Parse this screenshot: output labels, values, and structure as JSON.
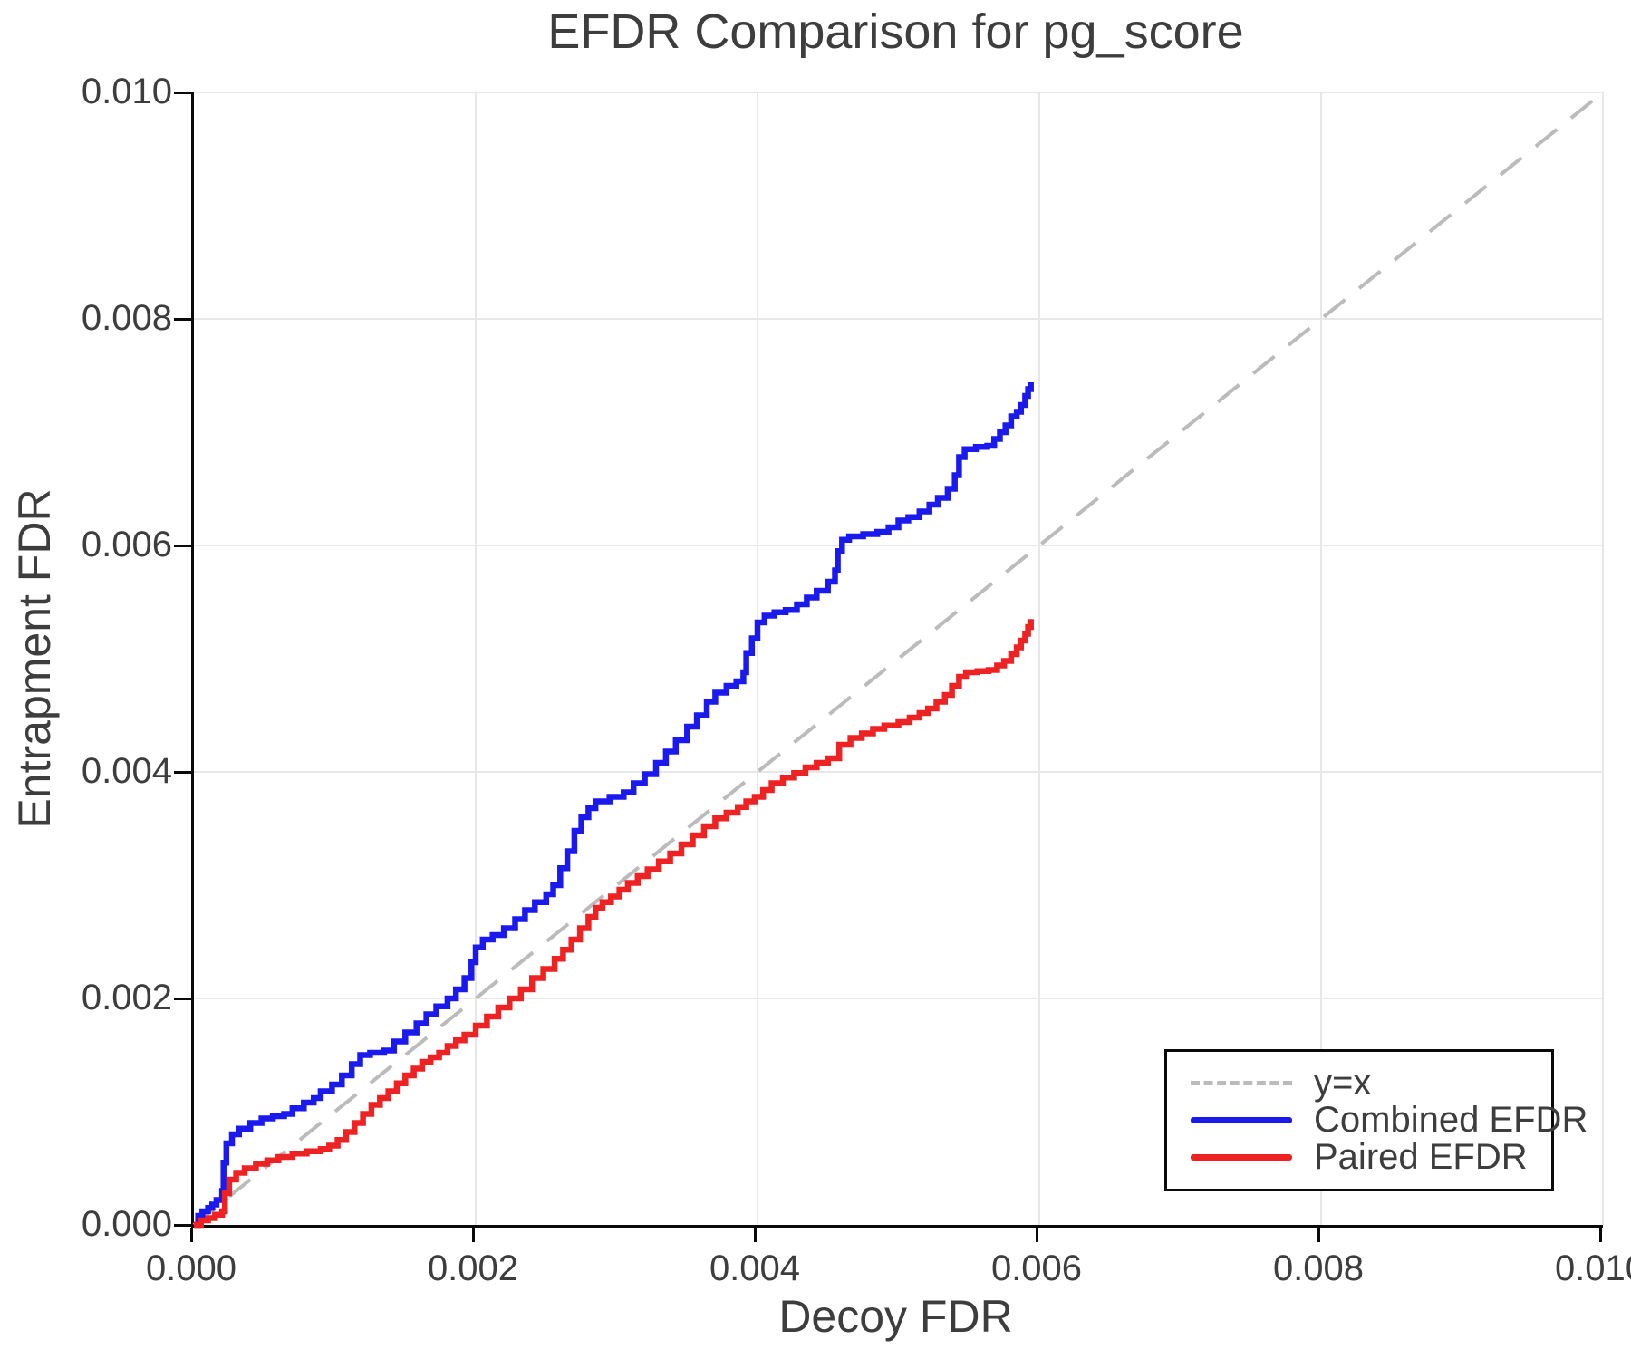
{
  "chart_data": {
    "type": "line",
    "title": "EFDR Comparison for pg_score",
    "xlabel": "Decoy FDR",
    "ylabel": "Entrapment FDR",
    "xlim": [
      0,
      0.01
    ],
    "ylim": [
      0,
      0.01
    ],
    "grid": true,
    "legend_position": "lower right",
    "x_ticks": {
      "values": [
        0,
        0.002,
        0.004,
        0.006,
        0.008,
        0.01
      ],
      "labels": [
        "0.000",
        "0.002",
        "0.004",
        "0.006",
        "0.008",
        "0.010"
      ]
    },
    "y_ticks": {
      "values": [
        0,
        0.002,
        0.004,
        0.006,
        0.008,
        0.01
      ],
      "labels": [
        "0.000",
        "0.002",
        "0.004",
        "0.006",
        "0.008",
        "0.010"
      ]
    },
    "colors": {
      "grid": "#e7e7e7",
      "spine": "#0a0a0a",
      "text": "#3d3d3d",
      "diagonal": "#bbbbbb",
      "combined": "#1a1aee",
      "paired": "#ee2222"
    },
    "series": [
      {
        "name": "y=x",
        "style": "dashed",
        "color": "#bbbbbb",
        "points": [
          [
            0,
            0
          ],
          [
            0.01,
            0.01
          ]
        ]
      },
      {
        "name": "Combined EFDR",
        "style": "step",
        "color": "#1a1aee",
        "points": [
          [
            0,
            0
          ],
          [
            3e-05,
            8e-05
          ],
          [
            6e-05,
            0.00012
          ],
          [
            0.0001,
            0.00015
          ],
          [
            0.00013,
            0.00018
          ],
          [
            0.00016,
            0.00022
          ],
          [
            0.0002,
            0.0003
          ],
          [
            0.00021,
            0.00055
          ],
          [
            0.00023,
            0.00072
          ],
          [
            0.00027,
            0.0008
          ],
          [
            0.00032,
            0.00085
          ],
          [
            0.0004,
            0.0009
          ],
          [
            0.00048,
            0.00094
          ],
          [
            0.00056,
            0.00096
          ],
          [
            0.00064,
            0.00098
          ],
          [
            0.0007,
            0.00103
          ],
          [
            0.00078,
            0.00108
          ],
          [
            0.00085,
            0.00112
          ],
          [
            0.0009,
            0.00118
          ],
          [
            0.00098,
            0.00124
          ],
          [
            0.00105,
            0.00132
          ],
          [
            0.00112,
            0.00142
          ],
          [
            0.00118,
            0.0015
          ],
          [
            0.00125,
            0.00152
          ],
          [
            0.00135,
            0.00154
          ],
          [
            0.00142,
            0.00162
          ],
          [
            0.0015,
            0.0017
          ],
          [
            0.00158,
            0.00178
          ],
          [
            0.00165,
            0.00186
          ],
          [
            0.00172,
            0.00193
          ],
          [
            0.0018,
            0.002
          ],
          [
            0.00186,
            0.00208
          ],
          [
            0.00192,
            0.00218
          ],
          [
            0.00197,
            0.00232
          ],
          [
            0.002,
            0.00245
          ],
          [
            0.00205,
            0.00252
          ],
          [
            0.00212,
            0.00256
          ],
          [
            0.0022,
            0.00262
          ],
          [
            0.00228,
            0.0027
          ],
          [
            0.00235,
            0.00278
          ],
          [
            0.00242,
            0.00285
          ],
          [
            0.0025,
            0.00292
          ],
          [
            0.00255,
            0.003
          ],
          [
            0.0026,
            0.00315
          ],
          [
            0.00265,
            0.0033
          ],
          [
            0.0027,
            0.00348
          ],
          [
            0.00275,
            0.0036
          ],
          [
            0.0028,
            0.00368
          ],
          [
            0.00285,
            0.00374
          ],
          [
            0.00295,
            0.00378
          ],
          [
            0.00305,
            0.00382
          ],
          [
            0.00312,
            0.0039
          ],
          [
            0.0032,
            0.00398
          ],
          [
            0.00328,
            0.00408
          ],
          [
            0.00335,
            0.00418
          ],
          [
            0.00342,
            0.00428
          ],
          [
            0.0035,
            0.0044
          ],
          [
            0.00357,
            0.0045
          ],
          [
            0.00364,
            0.00462
          ],
          [
            0.0037,
            0.0047
          ],
          [
            0.00378,
            0.00476
          ],
          [
            0.00385,
            0.0048
          ],
          [
            0.0039,
            0.00488
          ],
          [
            0.00392,
            0.00505
          ],
          [
            0.00396,
            0.00518
          ],
          [
            0.004,
            0.00532
          ],
          [
            0.00405,
            0.00538
          ],
          [
            0.00412,
            0.00541
          ],
          [
            0.0042,
            0.00543
          ],
          [
            0.00428,
            0.00548
          ],
          [
            0.00435,
            0.00554
          ],
          [
            0.00442,
            0.0056
          ],
          [
            0.0045,
            0.00568
          ],
          [
            0.00455,
            0.00578
          ],
          [
            0.00457,
            0.00595
          ],
          [
            0.0046,
            0.00605
          ],
          [
            0.00465,
            0.00608
          ],
          [
            0.00475,
            0.0061
          ],
          [
            0.00485,
            0.00612
          ],
          [
            0.00493,
            0.00616
          ],
          [
            0.005,
            0.00622
          ],
          [
            0.00507,
            0.00625
          ],
          [
            0.00515,
            0.0063
          ],
          [
            0.00522,
            0.00636
          ],
          [
            0.00528,
            0.00642
          ],
          [
            0.00535,
            0.0065
          ],
          [
            0.0054,
            0.00662
          ],
          [
            0.00543,
            0.00678
          ],
          [
            0.00547,
            0.00685
          ],
          [
            0.00555,
            0.00687
          ],
          [
            0.00563,
            0.00688
          ],
          [
            0.00568,
            0.00694
          ],
          [
            0.00572,
            0.007
          ],
          [
            0.00576,
            0.00706
          ],
          [
            0.0058,
            0.00714
          ],
          [
            0.00584,
            0.00718
          ],
          [
            0.00587,
            0.00724
          ],
          [
            0.0059,
            0.00732
          ],
          [
            0.00592,
            0.00738
          ],
          [
            0.00594,
            0.00744
          ]
        ]
      },
      {
        "name": "Paired EFDR",
        "style": "step",
        "color": "#ee2222",
        "points": [
          [
            0,
            0
          ],
          [
            5e-05,
            4e-05
          ],
          [
            0.0001,
            6e-05
          ],
          [
            0.00015,
            9e-05
          ],
          [
            0.0002,
            0.00012
          ],
          [
            0.00022,
            0.00028
          ],
          [
            0.00025,
            0.0004
          ],
          [
            0.0003,
            0.00046
          ],
          [
            0.00036,
            0.0005
          ],
          [
            0.00044,
            0.00054
          ],
          [
            0.00052,
            0.00057
          ],
          [
            0.0006,
            0.0006
          ],
          [
            0.0007,
            0.00063
          ],
          [
            0.0008,
            0.00065
          ],
          [
            0.0009,
            0.00067
          ],
          [
            0.00096,
            0.0007
          ],
          [
            0.00102,
            0.00075
          ],
          [
            0.00108,
            0.00082
          ],
          [
            0.00114,
            0.0009
          ],
          [
            0.0012,
            0.00098
          ],
          [
            0.00126,
            0.00106
          ],
          [
            0.00132,
            0.00112
          ],
          [
            0.00138,
            0.00118
          ],
          [
            0.00144,
            0.00125
          ],
          [
            0.0015,
            0.00132
          ],
          [
            0.00156,
            0.00138
          ],
          [
            0.00162,
            0.00144
          ],
          [
            0.00168,
            0.00148
          ],
          [
            0.00174,
            0.00152
          ],
          [
            0.0018,
            0.00158
          ],
          [
            0.00186,
            0.00163
          ],
          [
            0.00192,
            0.00168
          ],
          [
            0.002,
            0.00176
          ],
          [
            0.00208,
            0.00184
          ],
          [
            0.00216,
            0.00192
          ],
          [
            0.00224,
            0.002
          ],
          [
            0.00232,
            0.00208
          ],
          [
            0.0024,
            0.00218
          ],
          [
            0.00248,
            0.00226
          ],
          [
            0.00256,
            0.00235
          ],
          [
            0.00262,
            0.00243
          ],
          [
            0.00268,
            0.00252
          ],
          [
            0.00274,
            0.00262
          ],
          [
            0.0028,
            0.00272
          ],
          [
            0.00285,
            0.0028
          ],
          [
            0.0029,
            0.00285
          ],
          [
            0.00296,
            0.0029
          ],
          [
            0.00302,
            0.00296
          ],
          [
            0.00308,
            0.00302
          ],
          [
            0.00315,
            0.00308
          ],
          [
            0.00322,
            0.00314
          ],
          [
            0.0033,
            0.00321
          ],
          [
            0.00338,
            0.00328
          ],
          [
            0.00346,
            0.00336
          ],
          [
            0.00354,
            0.00344
          ],
          [
            0.00362,
            0.00352
          ],
          [
            0.0037,
            0.00359
          ],
          [
            0.00378,
            0.00364
          ],
          [
            0.00386,
            0.00369
          ],
          [
            0.00392,
            0.00374
          ],
          [
            0.00398,
            0.00378
          ],
          [
            0.00404,
            0.00384
          ],
          [
            0.0041,
            0.0039
          ],
          [
            0.00418,
            0.00395
          ],
          [
            0.00426,
            0.00399
          ],
          [
            0.00434,
            0.00404
          ],
          [
            0.00442,
            0.00408
          ],
          [
            0.0045,
            0.00412
          ],
          [
            0.00458,
            0.00424
          ],
          [
            0.00466,
            0.0043
          ],
          [
            0.00474,
            0.00434
          ],
          [
            0.00482,
            0.00438
          ],
          [
            0.0049,
            0.00441
          ],
          [
            0.005,
            0.00444
          ],
          [
            0.00508,
            0.00448
          ],
          [
            0.00515,
            0.00452
          ],
          [
            0.00521,
            0.00456
          ],
          [
            0.00527,
            0.00462
          ],
          [
            0.00533,
            0.00468
          ],
          [
            0.00538,
            0.00476
          ],
          [
            0.00543,
            0.00484
          ],
          [
            0.00548,
            0.00488
          ],
          [
            0.00556,
            0.00489
          ],
          [
            0.00564,
            0.0049
          ],
          [
            0.0057,
            0.00494
          ],
          [
            0.00575,
            0.00498
          ],
          [
            0.0058,
            0.00504
          ],
          [
            0.00584,
            0.0051
          ],
          [
            0.00587,
            0.00516
          ],
          [
            0.0059,
            0.00522
          ],
          [
            0.00592,
            0.00528
          ],
          [
            0.00594,
            0.00535
          ]
        ]
      }
    ],
    "legend": [
      {
        "label": "y=x",
        "style": "dashed",
        "color": "#bbbbbb"
      },
      {
        "label": "Combined EFDR",
        "style": "solid",
        "color": "#1a1aee"
      },
      {
        "label": "Paired EFDR",
        "style": "solid",
        "color": "#ee2222"
      }
    ]
  }
}
